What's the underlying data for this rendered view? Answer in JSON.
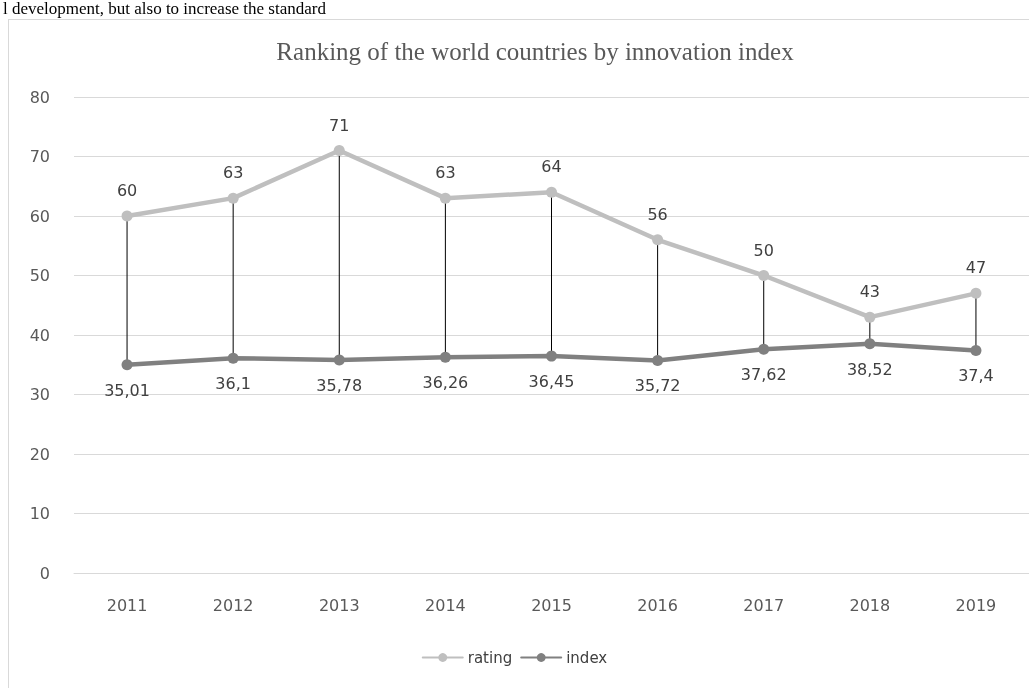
{
  "chart_data": {
    "type": "line",
    "title": "Ranking of the world countries by innovation index",
    "annotations": [
      "l development, but also to increase the standard"
    ],
    "categories": [
      "2011",
      "2012",
      "2013",
      "2014",
      "2015",
      "2016",
      "2017",
      "2018",
      "2019"
    ],
    "series": [
      {
        "name": "rating",
        "color": "#bfbfbf",
        "values": [
          60,
          63,
          71,
          63,
          64,
          56,
          50,
          43,
          47
        ],
        "value_labels": [
          "60",
          "63",
          "71",
          "63",
          "64",
          "56",
          "50",
          "43",
          "47"
        ]
      },
      {
        "name": "index",
        "color": "#808080",
        "values": [
          35.01,
          36.1,
          35.78,
          36.26,
          36.45,
          35.72,
          37.62,
          38.52,
          37.4
        ],
        "value_labels": [
          "35,01",
          "36,1",
          "35,78",
          "36,26",
          "36,45",
          "35,72",
          "37,62",
          "38,52",
          "37,4"
        ]
      }
    ],
    "ylim": [
      0,
      80
    ],
    "yticks": [
      0,
      10,
      20,
      30,
      40,
      50,
      60,
      70,
      80
    ],
    "grid": "y",
    "legend": "bottom",
    "marker": "circle",
    "line_style": "solid"
  }
}
